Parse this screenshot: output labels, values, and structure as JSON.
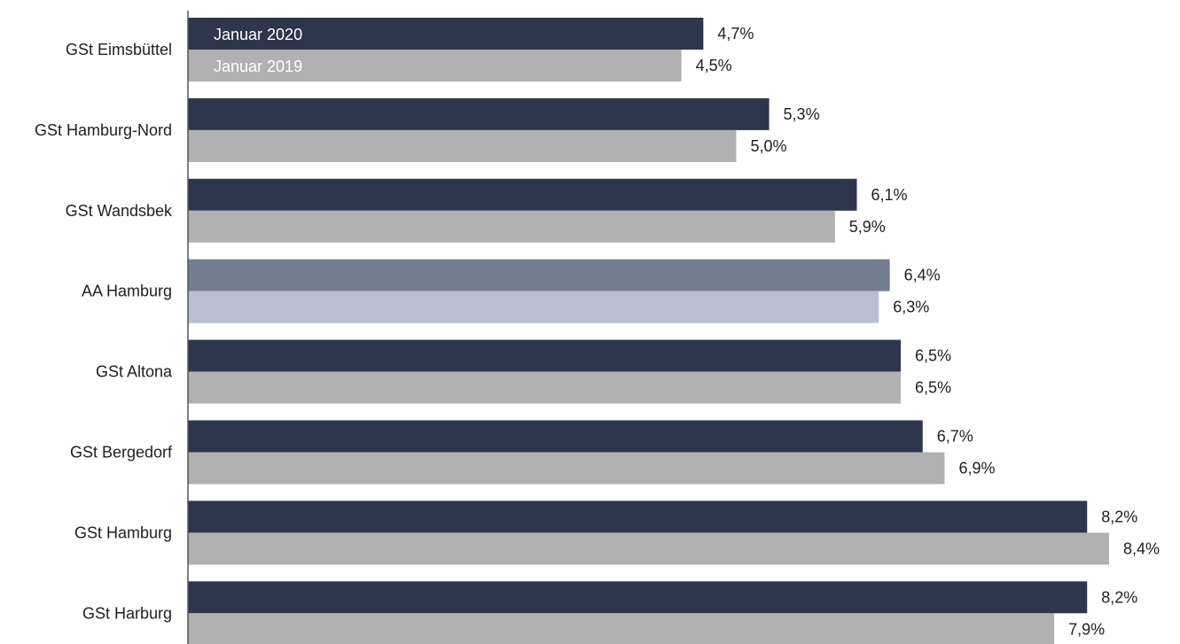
{
  "chart_data": {
    "type": "bar",
    "orientation": "horizontal",
    "categories": [
      "GSt Eimsbüttel",
      "GSt Hamburg-Nord",
      "GSt Wandsbek",
      "AA Hamburg",
      "GSt Altona",
      "GSt Bergedorf",
      "GSt Hamburg",
      "GSt Harburg"
    ],
    "series": [
      {
        "name": "Januar 2020",
        "values": [
          4.7,
          5.3,
          6.1,
          6.4,
          6.5,
          6.7,
          8.2,
          8.2
        ],
        "labels": [
          "4,7%",
          "5,3%",
          "6,1%",
          "6,4%",
          "6,5%",
          "6,7%",
          "8,2%",
          "8,2%"
        ],
        "color": "#2e364d",
        "highlight_color": "#737d90"
      },
      {
        "name": "Januar 2019",
        "values": [
          4.5,
          5.0,
          5.9,
          6.3,
          6.5,
          6.9,
          8.4,
          7.9
        ],
        "labels": [
          "4,5%",
          "5,0%",
          "5,9%",
          "6,3%",
          "6,5%",
          "6,9%",
          "8,4%",
          "7,9%"
        ],
        "color": "#b1b1b1",
        "highlight_color": "#b8bfd1"
      }
    ],
    "highlight_category": "AA Hamburg",
    "xlim": [
      0,
      8.4
    ],
    "legend": "inside first bars, top-left",
    "grid": false,
    "axis_color": "#555555"
  }
}
